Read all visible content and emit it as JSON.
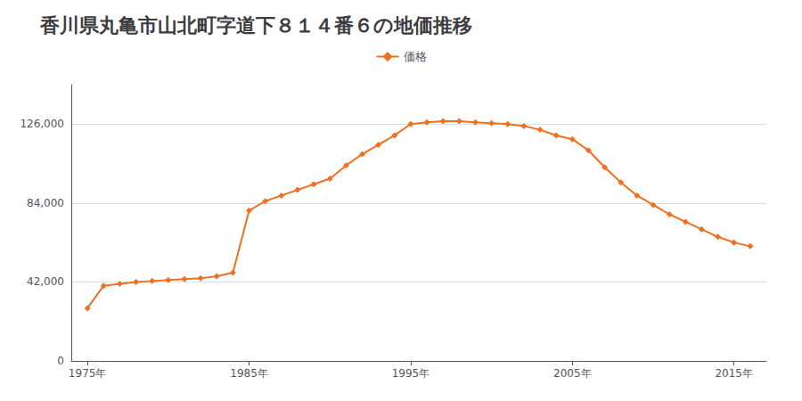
{
  "chart_data": {
    "type": "line",
    "title": "香川県丸亀市山北町字道下８１４番６の地価推移",
    "x": [
      1975,
      1976,
      1977,
      1978,
      1979,
      1980,
      1981,
      1982,
      1983,
      1984,
      1985,
      1986,
      1987,
      1988,
      1989,
      1990,
      1991,
      1992,
      1993,
      1994,
      1995,
      1996,
      1997,
      1998,
      1999,
      2000,
      2001,
      2002,
      2003,
      2004,
      2005,
      2006,
      2007,
      2008,
      2009,
      2010,
      2011,
      2012,
      2013,
      2014,
      2015,
      2016
    ],
    "series": [
      {
        "name": "価格",
        "color": "#f07020",
        "marker": "diamond",
        "values": [
          28000,
          40000,
          41000,
          42000,
          42500,
          43000,
          43500,
          44000,
          45000,
          47000,
          80000,
          85000,
          88000,
          91000,
          94000,
          97000,
          104000,
          110000,
          115000,
          120000,
          126000,
          127000,
          127500,
          127500,
          127000,
          126500,
          126000,
          125000,
          123000,
          120000,
          118000,
          112000,
          103000,
          95000,
          88000,
          83000,
          78000,
          74000,
          70000,
          66000,
          63000,
          61000
        ]
      }
    ],
    "xlim": [
      1974,
      2017
    ],
    "xticks": [
      {
        "value": 1975,
        "label": "1975年"
      },
      {
        "value": 1985,
        "label": "1985年"
      },
      {
        "value": 1995,
        "label": "1995年"
      },
      {
        "value": 2005,
        "label": "2005年"
      },
      {
        "value": 2015,
        "label": "2015年"
      }
    ],
    "ylim": [
      0,
      147000
    ],
    "yticks": [
      0,
      {
        "value": 42000,
        "label": "42,000"
      },
      {
        "value": 84000,
        "label": "84,000"
      },
      {
        "value": 126000,
        "label": "126,000"
      }
    ],
    "grid": true,
    "legend": "top"
  }
}
